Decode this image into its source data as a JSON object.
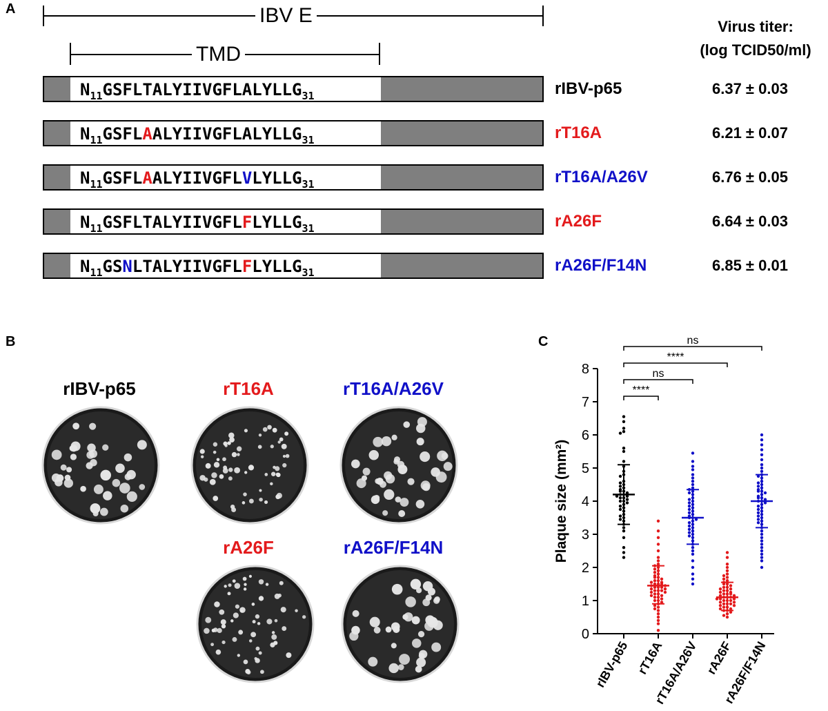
{
  "panels": {
    "a": "A",
    "b": "B",
    "c": "C"
  },
  "panel_a": {
    "gene_label": "IBV E",
    "domain_label": "TMD",
    "titer_header": [
      "Virus titer:",
      "(log TCID50/ml)"
    ],
    "rows": [
      {
        "variant": "rIBV-p65",
        "variant_color": "#000000",
        "titer": "6.37 ± 0.03",
        "sequence": [
          {
            "t": "N",
            "c": "k"
          },
          {
            "sub": "11"
          },
          {
            "t": "GSFLTALYIIVGFLALYLLG",
            "c": "k"
          },
          {
            "sub": "31"
          }
        ]
      },
      {
        "variant": "rT16A",
        "variant_color": "#e31a1c",
        "titer": "6.21 ± 0.07",
        "sequence": [
          {
            "t": "N",
            "c": "k"
          },
          {
            "sub": "11"
          },
          {
            "t": "GSFL",
            "c": "k"
          },
          {
            "t": "A",
            "c": "r"
          },
          {
            "t": "ALYIIVGFLALYLLG",
            "c": "k"
          },
          {
            "sub": "31"
          }
        ]
      },
      {
        "variant": "rT16A/A26V",
        "variant_color": "#1010c8",
        "titer": "6.76 ± 0.05",
        "sequence": [
          {
            "t": "N",
            "c": "k"
          },
          {
            "sub": "11"
          },
          {
            "t": "GSFL",
            "c": "k"
          },
          {
            "t": "A",
            "c": "r"
          },
          {
            "t": "ALYIIVGFL",
            "c": "k"
          },
          {
            "t": "V",
            "c": "b"
          },
          {
            "t": "LYLLG",
            "c": "k"
          },
          {
            "sub": "31"
          }
        ]
      },
      {
        "variant": "rA26F",
        "variant_color": "#e31a1c",
        "titer": "6.64 ± 0.03",
        "sequence": [
          {
            "t": "N",
            "c": "k"
          },
          {
            "sub": "11"
          },
          {
            "t": "GSFLTALYIIVGFL",
            "c": "k"
          },
          {
            "t": "F",
            "c": "r"
          },
          {
            "t": "LYLLG",
            "c": "k"
          },
          {
            "sub": "31"
          }
        ]
      },
      {
        "variant": "rA26F/F14N",
        "variant_color": "#1010c8",
        "titer": "6.85 ± 0.01",
        "sequence": [
          {
            "t": "N",
            "c": "k"
          },
          {
            "sub": "11"
          },
          {
            "t": "GS",
            "c": "k"
          },
          {
            "t": "N",
            "c": "b"
          },
          {
            "t": "LTALYIIVGFL",
            "c": "k"
          },
          {
            "t": "F",
            "c": "r"
          },
          {
            "t": "LYLLG",
            "c": "k"
          },
          {
            "sub": "31"
          }
        ]
      }
    ]
  },
  "panel_b": {
    "plates": [
      {
        "label": "rIBV-p65",
        "color": "#000000",
        "plaque_size": "large"
      },
      {
        "label": "rT16A",
        "color": "#e31a1c",
        "plaque_size": "small"
      },
      {
        "label": "rT16A/A26V",
        "color": "#1010c8",
        "plaque_size": "large"
      },
      {
        "label": "rA26F",
        "color": "#e31a1c",
        "plaque_size": "small"
      },
      {
        "label": "rA26F/F14N",
        "color": "#1010c8",
        "plaque_size": "large"
      }
    ]
  },
  "chart_data": {
    "type": "scatter",
    "ylabel": "Plaque size (mm²)",
    "ylim": [
      0,
      8
    ],
    "yticks": [
      "0",
      "1",
      "2",
      "3",
      "4",
      "5",
      "6",
      "7",
      "8"
    ],
    "categories": [
      "rIBV-p65",
      "rT16A",
      "rT16A/A26V",
      "rA26F",
      "rA26F/F14N"
    ],
    "category_colors": [
      "#000000",
      "#e31a1c",
      "#1010c8",
      "#e31a1c",
      "#1010c8"
    ],
    "mean": [
      4.2,
      1.45,
      3.5,
      1.1,
      4.0
    ],
    "sd_low": [
      3.3,
      0.9,
      2.7,
      0.7,
      3.2
    ],
    "sd_high": [
      5.1,
      2.05,
      4.35,
      1.55,
      4.8
    ],
    "points": [
      [
        6.55,
        6.4,
        6.2,
        6.1,
        6.05,
        5.6,
        5.5,
        5.2,
        5.05,
        4.9,
        4.8,
        4.75,
        4.6,
        4.55,
        4.5,
        4.45,
        4.4,
        4.35,
        4.3,
        4.3,
        4.25,
        4.2,
        4.2,
        4.15,
        4.15,
        4.1,
        4.1,
        4.05,
        4.0,
        4.0,
        3.95,
        3.9,
        3.85,
        3.8,
        3.75,
        3.7,
        3.6,
        3.55,
        3.5,
        3.45,
        3.4,
        3.3,
        3.2,
        3.1,
        2.9,
        2.6,
        2.45,
        2.3
      ],
      [
        3.4,
        3.1,
        2.9,
        2.7,
        2.5,
        2.3,
        2.2,
        2.1,
        2.05,
        2.0,
        1.95,
        1.9,
        1.85,
        1.8,
        1.75,
        1.7,
        1.7,
        1.65,
        1.6,
        1.6,
        1.55,
        1.55,
        1.5,
        1.5,
        1.5,
        1.45,
        1.45,
        1.4,
        1.4,
        1.4,
        1.35,
        1.35,
        1.3,
        1.3,
        1.3,
        1.25,
        1.25,
        1.2,
        1.2,
        1.15,
        1.15,
        1.1,
        1.1,
        1.05,
        1.0,
        1.0,
        0.95,
        0.9,
        0.85,
        0.8,
        0.75,
        0.7,
        0.6,
        0.5,
        0.4,
        0.3,
        0.1
      ],
      [
        5.45,
        5.2,
        5.05,
        4.95,
        4.8,
        4.7,
        4.6,
        4.5,
        4.4,
        4.35,
        4.3,
        4.25,
        4.2,
        4.1,
        4.05,
        4.0,
        3.95,
        3.9,
        3.85,
        3.8,
        3.75,
        3.7,
        3.65,
        3.6,
        3.55,
        3.5,
        3.5,
        3.45,
        3.4,
        3.35,
        3.3,
        3.25,
        3.2,
        3.15,
        3.1,
        3.05,
        3.0,
        2.95,
        2.9,
        2.8,
        2.7,
        2.6,
        2.5,
        2.4,
        2.2,
        2.0,
        1.8,
        1.65,
        1.5
      ],
      [
        2.45,
        2.3,
        2.1,
        2.0,
        1.9,
        1.8,
        1.75,
        1.7,
        1.65,
        1.6,
        1.55,
        1.5,
        1.5,
        1.45,
        1.4,
        1.4,
        1.35,
        1.35,
        1.3,
        1.3,
        1.25,
        1.25,
        1.2,
        1.2,
        1.2,
        1.15,
        1.15,
        1.1,
        1.1,
        1.1,
        1.05,
        1.05,
        1.05,
        1.0,
        1.0,
        1.0,
        0.95,
        0.95,
        0.9,
        0.9,
        0.9,
        0.85,
        0.85,
        0.8,
        0.8,
        0.75,
        0.75,
        0.7,
        0.7,
        0.65,
        0.6,
        0.55,
        0.5
      ],
      [
        6.0,
        5.85,
        5.7,
        5.55,
        5.4,
        5.25,
        5.1,
        5.0,
        4.9,
        4.8,
        4.75,
        4.7,
        4.6,
        4.55,
        4.5,
        4.45,
        4.4,
        4.35,
        4.3,
        4.3,
        4.25,
        4.2,
        4.15,
        4.1,
        4.1,
        4.05,
        4.0,
        4.0,
        3.95,
        3.9,
        3.85,
        3.8,
        3.75,
        3.7,
        3.65,
        3.6,
        3.55,
        3.5,
        3.45,
        3.4,
        3.35,
        3.3,
        3.2,
        3.1,
        3.0,
        2.9,
        2.8,
        2.7,
        2.6,
        2.5,
        2.4,
        2.3,
        2.2,
        2.0
      ]
    ],
    "significance": [
      {
        "from": 0,
        "to": 1,
        "label": "****"
      },
      {
        "from": 0,
        "to": 2,
        "label": "ns"
      },
      {
        "from": 0,
        "to": 3,
        "label": "****"
      },
      {
        "from": 0,
        "to": 4,
        "label": "ns"
      }
    ]
  }
}
